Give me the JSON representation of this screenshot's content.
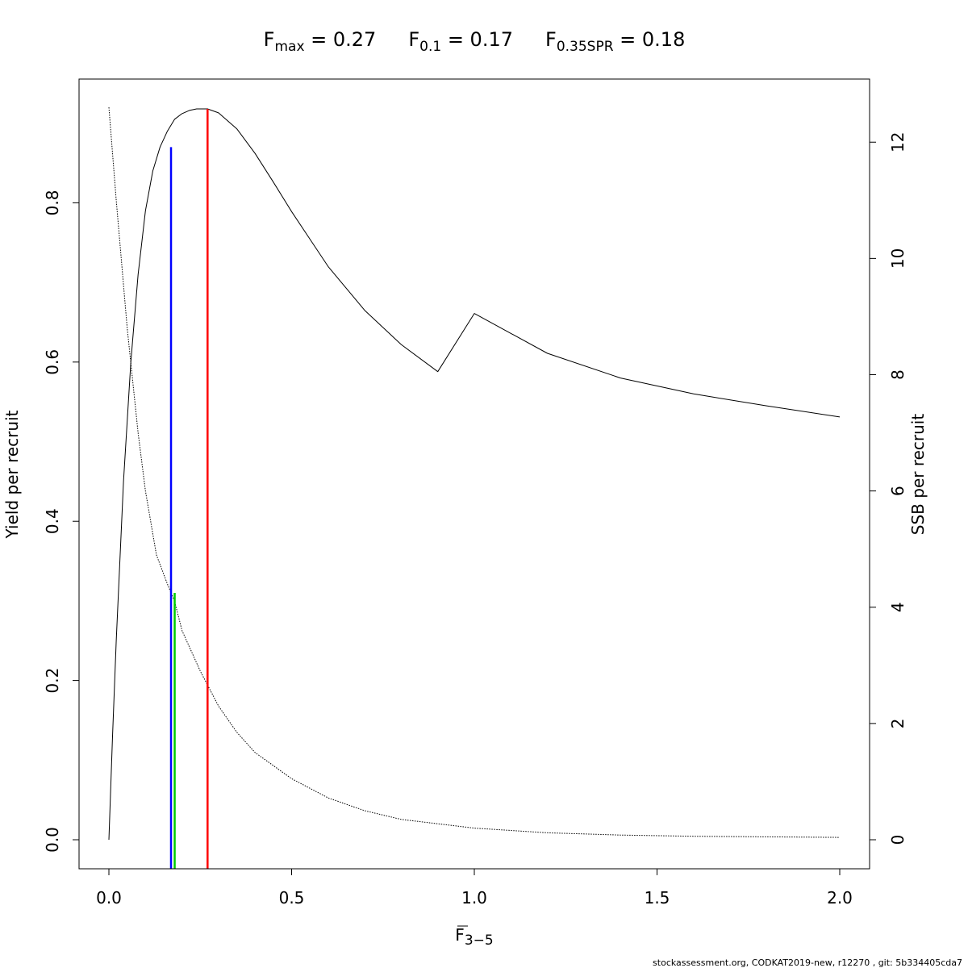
{
  "chart_data": {
    "type": "line",
    "title": {
      "fmax": {
        "base": "F",
        "sub": "max",
        "rest": " = 0.27"
      },
      "f01": {
        "base": "F",
        "sub": "0.1",
        "rest": " = 0.17"
      },
      "f35": {
        "base": "F",
        "sub": "0.35SPR",
        "rest": " = 0.18"
      }
    },
    "xlabel": {
      "base": "F",
      "sub": "3−5"
    },
    "ylabel_left": "Yield per recruit",
    "ylabel_right": "SSB per recruit",
    "xlim": [
      0,
      2
    ],
    "ylim_left": [
      0,
      0.92
    ],
    "ylim_right": [
      0,
      12.6
    ],
    "x_ticks": [
      "0.0",
      "0.5",
      "1.0",
      "1.5",
      "2.0"
    ],
    "y_left_ticks": [
      "0.0",
      "0.2",
      "0.4",
      "0.6",
      "0.8"
    ],
    "y_right_ticks": [
      "0",
      "2",
      "4",
      "6",
      "8",
      "10",
      "12"
    ],
    "series": [
      {
        "axis": "left",
        "style": "solid",
        "color": "#000000",
        "x": [
          0,
          0.01,
          0.02,
          0.04,
          0.06,
          0.08,
          0.1,
          0.12,
          0.14,
          0.16,
          0.18,
          0.2,
          0.22,
          0.24,
          0.27,
          0.3,
          0.35,
          0.4,
          0.45,
          0.5,
          0.6,
          0.7,
          0.8,
          0.9,
          1.0,
          1.2,
          1.4,
          1.6,
          1.8,
          2.0
        ],
        "y": [
          0,
          0.13,
          0.25,
          0.45,
          0.6,
          0.71,
          0.79,
          0.84,
          0.87,
          0.89,
          0.905,
          0.912,
          0.916,
          0.918,
          0.918,
          0.913,
          0.893,
          0.862,
          0.826,
          0.789,
          0.72,
          0.665,
          0.622,
          0.588,
          0.661,
          0.611,
          0.58,
          0.56,
          0.545,
          0.531
        ]
      },
      {
        "axis": "right",
        "style": "dotted",
        "color": "#000000",
        "x": [
          0,
          0.02,
          0.05,
          0.08,
          0.1,
          0.13,
          0.16,
          0.18,
          0.2,
          0.25,
          0.3,
          0.35,
          0.4,
          0.5,
          0.6,
          0.7,
          0.8,
          1.0,
          1.2,
          1.4,
          1.6,
          1.8,
          2.0
        ],
        "y": [
          12.6,
          11.0,
          8.8,
          7.0,
          6.0,
          4.9,
          4.4,
          4.1,
          3.6,
          2.9,
          2.3,
          1.85,
          1.5,
          1.05,
          0.72,
          0.5,
          0.35,
          0.2,
          0.12,
          0.08,
          0.06,
          0.05,
          0.04
        ]
      }
    ],
    "reference_lines": [
      {
        "name": "F0.1",
        "x": 0.17,
        "color": "#0000ff",
        "y_left_top": 0.87
      },
      {
        "name": "F0.35SPR",
        "x": 0.18,
        "color": "#00cc00",
        "y_left_top": 0.31
      },
      {
        "name": "Fmax",
        "x": 0.27,
        "color": "#ff0000",
        "y_left_top": 0.918
      }
    ],
    "grid": false,
    "footer": "stockassessment.org, CODKAT2019-new, r12270 , git: 5b334405cda7"
  }
}
